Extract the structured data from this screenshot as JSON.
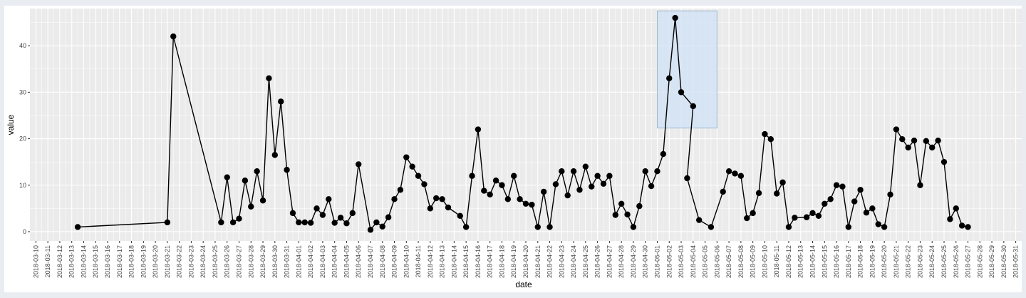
{
  "chart_data": {
    "type": "line",
    "xlabel": "date",
    "ylabel": "value",
    "grid": true,
    "xlim": [
      "2018-03-10",
      "2018-05-31"
    ],
    "ylim": [
      -2,
      48
    ],
    "y_ticks": [
      0,
      10,
      20,
      30,
      40
    ],
    "x_ticks": [
      "2018-03-10",
      "2018-03-11",
      "2018-03-12",
      "2018-03-13",
      "2018-03-14",
      "2018-03-15",
      "2018-03-16",
      "2018-03-17",
      "2018-03-18",
      "2018-03-19",
      "2018-03-20",
      "2018-03-21",
      "2018-03-22",
      "2018-03-23",
      "2018-03-24",
      "2018-03-25",
      "2018-03-26",
      "2018-03-27",
      "2018-03-28",
      "2018-03-29",
      "2018-03-30",
      "2018-03-31",
      "2018-04-01",
      "2018-04-02",
      "2018-04-03",
      "2018-04-04",
      "2018-04-05",
      "2018-04-06",
      "2018-04-07",
      "2018-04-08",
      "2018-04-09",
      "2018-04-10",
      "2018-04-11",
      "2018-04-12",
      "2018-04-13",
      "2018-04-14",
      "2018-04-15",
      "2018-04-16",
      "2018-04-17",
      "2018-04-18",
      "2018-04-19",
      "2018-04-20",
      "2018-04-21",
      "2018-04-22",
      "2018-04-23",
      "2018-04-24",
      "2018-04-25",
      "2018-04-26",
      "2018-04-27",
      "2018-04-28",
      "2018-04-29",
      "2018-04-30",
      "2018-05-01",
      "2018-05-02",
      "2018-05-03",
      "2018-05-04",
      "2018-05-05",
      "2018-05-06",
      "2018-05-07",
      "2018-05-08",
      "2018-05-09",
      "2018-05-10",
      "2018-05-11",
      "2018-05-12",
      "2018-05-13",
      "2018-05-14",
      "2018-05-15",
      "2018-05-16",
      "2018-05-17",
      "2018-05-18",
      "2018-05-19",
      "2018-05-20",
      "2018-05-21",
      "2018-05-22",
      "2018-05-23",
      "2018-05-24",
      "2018-05-25",
      "2018-05-26",
      "2018-05-27",
      "2018-05-28",
      "2018-05-29",
      "2018-05-30",
      "2018-05-31"
    ],
    "series": [
      {
        "color": "#000000",
        "points": [
          [
            "2018-03-13 12:00",
            1.0
          ],
          [
            "2018-03-21 00:00",
            2.0
          ],
          [
            "2018-03-21 12:00",
            42.0
          ],
          [
            "2018-03-25 12:00",
            2.0
          ],
          [
            "2018-03-26 00:00",
            11.7
          ],
          [
            "2018-03-26 12:00",
            2.0
          ],
          [
            "2018-03-27 00:00",
            2.8
          ],
          [
            "2018-03-27 12:00",
            11.0
          ],
          [
            "2018-03-28 00:00",
            5.4
          ],
          [
            "2018-03-28 12:00",
            13.0
          ],
          [
            "2018-03-29 00:00",
            6.7
          ],
          [
            "2018-03-29 12:00",
            33.0
          ],
          [
            "2018-03-30 00:00",
            16.5
          ],
          [
            "2018-03-30 12:00",
            28.0
          ],
          [
            "2018-03-31 00:00",
            13.3
          ],
          [
            "2018-03-31 12:00",
            4.0
          ],
          [
            "2018-04-01 00:00",
            2.0
          ],
          [
            "2018-04-01 12:00",
            2.0
          ],
          [
            "2018-04-02 00:00",
            1.9
          ],
          [
            "2018-04-02 12:00",
            5.0
          ],
          [
            "2018-04-03 00:00",
            3.6
          ],
          [
            "2018-04-03 12:00",
            7.0
          ],
          [
            "2018-04-04 00:00",
            1.9
          ],
          [
            "2018-04-04 12:00",
            3.0
          ],
          [
            "2018-04-05 00:00",
            1.8
          ],
          [
            "2018-04-05 12:00",
            4.0
          ],
          [
            "2018-04-06 00:00",
            14.5
          ],
          [
            "2018-04-07 00:00",
            0.4
          ],
          [
            "2018-04-07 12:00",
            2.0
          ],
          [
            "2018-04-08 00:00",
            1.1
          ],
          [
            "2018-04-08 12:00",
            3.1
          ],
          [
            "2018-04-09 00:00",
            7.0
          ],
          [
            "2018-04-09 12:00",
            9.0
          ],
          [
            "2018-04-10 00:00",
            16.0
          ],
          [
            "2018-04-10 12:00",
            14.0
          ],
          [
            "2018-04-11 00:00",
            12.0
          ],
          [
            "2018-04-11 12:00",
            10.2
          ],
          [
            "2018-04-12 00:00",
            5.0
          ],
          [
            "2018-04-12 12:00",
            7.2
          ],
          [
            "2018-04-13 00:00",
            7.0
          ],
          [
            "2018-04-13 12:00",
            5.2
          ],
          [
            "2018-04-14 12:00",
            3.4
          ],
          [
            "2018-04-15 00:00",
            1.0
          ],
          [
            "2018-04-15 12:00",
            12.0
          ],
          [
            "2018-04-16 00:00",
            22.0
          ],
          [
            "2018-04-16 12:00",
            8.8
          ],
          [
            "2018-04-17 00:00",
            8.0
          ],
          [
            "2018-04-17 12:00",
            11.0
          ],
          [
            "2018-04-18 00:00",
            10.0
          ],
          [
            "2018-04-18 12:00",
            7.0
          ],
          [
            "2018-04-19 00:00",
            12.0
          ],
          [
            "2018-04-19 12:00",
            7.0
          ],
          [
            "2018-04-20 00:00",
            6.0
          ],
          [
            "2018-04-20 12:00",
            5.8
          ],
          [
            "2018-04-21 00:00",
            1.0
          ],
          [
            "2018-04-21 12:00",
            8.6
          ],
          [
            "2018-04-22 00:00",
            1.0
          ],
          [
            "2018-04-22 12:00",
            10.2
          ],
          [
            "2018-04-23 00:00",
            13.0
          ],
          [
            "2018-04-23 12:00",
            7.8
          ],
          [
            "2018-04-24 00:00",
            13.0
          ],
          [
            "2018-04-24 12:00",
            9.0
          ],
          [
            "2018-04-25 00:00",
            14.0
          ],
          [
            "2018-04-25 12:00",
            9.7
          ],
          [
            "2018-04-26 00:00",
            12.0
          ],
          [
            "2018-04-26 12:00",
            10.3
          ],
          [
            "2018-04-27 00:00",
            12.0
          ],
          [
            "2018-04-27 12:00",
            3.6
          ],
          [
            "2018-04-28 00:00",
            6.0
          ],
          [
            "2018-04-28 12:00",
            3.7
          ],
          [
            "2018-04-29 00:00",
            1.0
          ],
          [
            "2018-04-29 12:00",
            5.5
          ],
          [
            "2018-04-30 00:00",
            13.0
          ],
          [
            "2018-04-30 12:00",
            9.8
          ],
          [
            "2018-05-01 00:00",
            13.0
          ],
          [
            "2018-05-01 12:00",
            16.7
          ],
          [
            "2018-05-02 00:00",
            33.0
          ],
          [
            "2018-05-02 12:00",
            46.0
          ],
          [
            "2018-05-03 00:00",
            30.0
          ],
          [
            "2018-05-04 00:00",
            27.0
          ],
          [
            "2018-05-03 12:00",
            11.5
          ],
          [
            "2018-05-04 12:00",
            2.5
          ],
          [
            "2018-05-05 12:00",
            1.0
          ],
          [
            "2018-05-06 12:00",
            8.6
          ],
          [
            "2018-05-07 00:00",
            13.0
          ],
          [
            "2018-05-07 12:00",
            12.5
          ],
          [
            "2018-05-08 00:00",
            12.0
          ],
          [
            "2018-05-08 12:00",
            2.9
          ],
          [
            "2018-05-09 00:00",
            4.0
          ],
          [
            "2018-05-09 12:00",
            8.3
          ],
          [
            "2018-05-10 00:00",
            21.0
          ],
          [
            "2018-05-10 12:00",
            19.9
          ],
          [
            "2018-05-11 00:00",
            8.2
          ],
          [
            "2018-05-11 12:00",
            10.6
          ],
          [
            "2018-05-12 00:00",
            1.0
          ],
          [
            "2018-05-12 12:00",
            3.0
          ],
          [
            "2018-05-13 12:00",
            3.1
          ],
          [
            "2018-05-14 00:00",
            4.0
          ],
          [
            "2018-05-14 12:00",
            3.4
          ],
          [
            "2018-05-15 00:00",
            6.0
          ],
          [
            "2018-05-15 12:00",
            7.0
          ],
          [
            "2018-05-16 00:00",
            10.0
          ],
          [
            "2018-05-16 12:00",
            9.7
          ],
          [
            "2018-05-17 00:00",
            1.0
          ],
          [
            "2018-05-17 12:00",
            6.5
          ],
          [
            "2018-05-18 00:00",
            9.0
          ],
          [
            "2018-05-18 12:00",
            4.1
          ],
          [
            "2018-05-19 00:00",
            5.0
          ],
          [
            "2018-05-19 12:00",
            1.6
          ],
          [
            "2018-05-20 00:00",
            1.0
          ],
          [
            "2018-05-20 12:00",
            8.0
          ],
          [
            "2018-05-21 00:00",
            22.0
          ],
          [
            "2018-05-21 12:00",
            19.9
          ],
          [
            "2018-05-22 00:00",
            18.1
          ],
          [
            "2018-05-22 12:00",
            19.6
          ],
          [
            "2018-05-23 00:00",
            10.0
          ],
          [
            "2018-05-23 12:00",
            19.5
          ],
          [
            "2018-05-24 00:00",
            18.1
          ],
          [
            "2018-05-24 12:00",
            19.6
          ],
          [
            "2018-05-25 00:00",
            15.0
          ],
          [
            "2018-05-25 12:00",
            2.7
          ],
          [
            "2018-05-26 00:00",
            5.0
          ],
          [
            "2018-05-26 12:00",
            1.3
          ],
          [
            "2018-05-27 00:00",
            1.0
          ]
        ]
      }
    ],
    "highlight": {
      "x_range": [
        "2018-05-01 00:00",
        "2018-05-06 00:00"
      ],
      "y_range": [
        22.3,
        47.5
      ],
      "fill": "#cfe2f6"
    }
  },
  "colors": {
    "page_background": "#e9edf2",
    "panel_background": "#ebebeb",
    "grid_major": "#ffffff",
    "line": "#000000",
    "highlight_fill": "#cfe2f6",
    "highlight_stroke": "#9fb7d0"
  }
}
